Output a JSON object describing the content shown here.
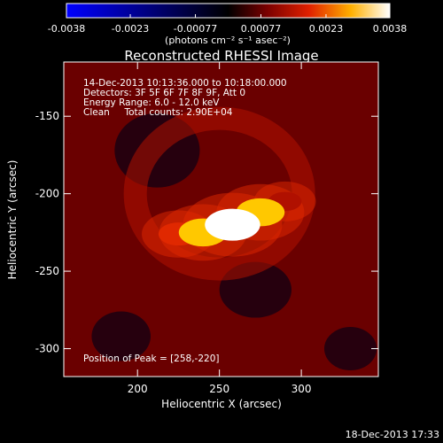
{
  "chart_data": {
    "type": "heatmap",
    "title": "Reconstructed RHESSI Image",
    "xlabel": "Heliocentric X (arcsec)",
    "ylabel": "Heliocentric Y (arcsec)",
    "xlim": [
      155,
      347
    ],
    "ylim": [
      -318,
      -115
    ],
    "x_ticks": [
      "200",
      "250",
      "300"
    ],
    "x_tick_values": [
      200,
      250,
      300
    ],
    "y_ticks": [
      "-150",
      "-200",
      "-250",
      "-300"
    ],
    "y_tick_values": [
      -150,
      -200,
      -250,
      -300
    ],
    "colorbar": {
      "ticks": [
        "-0.0038",
        "-0.0023",
        "-0.00077",
        "0.00077",
        "0.0023",
        "0.0038"
      ],
      "tick_values": [
        -0.0038,
        -0.0023,
        -0.00077,
        0.00077,
        0.0023,
        0.0038
      ],
      "range": [
        -0.0038,
        0.0038
      ],
      "unit_label": "(photons cm⁻² s⁻¹ asec⁻²)"
    },
    "annotations": [
      "14-Dec-2013 10:13:36.000 to 10:18:00.000",
      "Detectors: 3F 5F 6F 7F 8F 9F, Att 0",
      "Energy Range: 6.0 - 12.0 keV",
      "Clean     Total counts: 2.90E+04"
    ],
    "peak_label": "Position of Peak = [258,-220]",
    "peak": [
      258,
      -220
    ],
    "sources": [
      {
        "x": 258,
        "y": -220,
        "flux": 0.0038
      },
      {
        "x": 240,
        "y": -225,
        "flux": 0.003
      },
      {
        "x": 275,
        "y": -212,
        "flux": 0.003
      },
      {
        "x": 225,
        "y": -226,
        "flux": 0.002
      },
      {
        "x": 290,
        "y": -205,
        "flux": 0.0012
      }
    ]
  },
  "footer_timestamp": "18-Dec-2013 17:33"
}
